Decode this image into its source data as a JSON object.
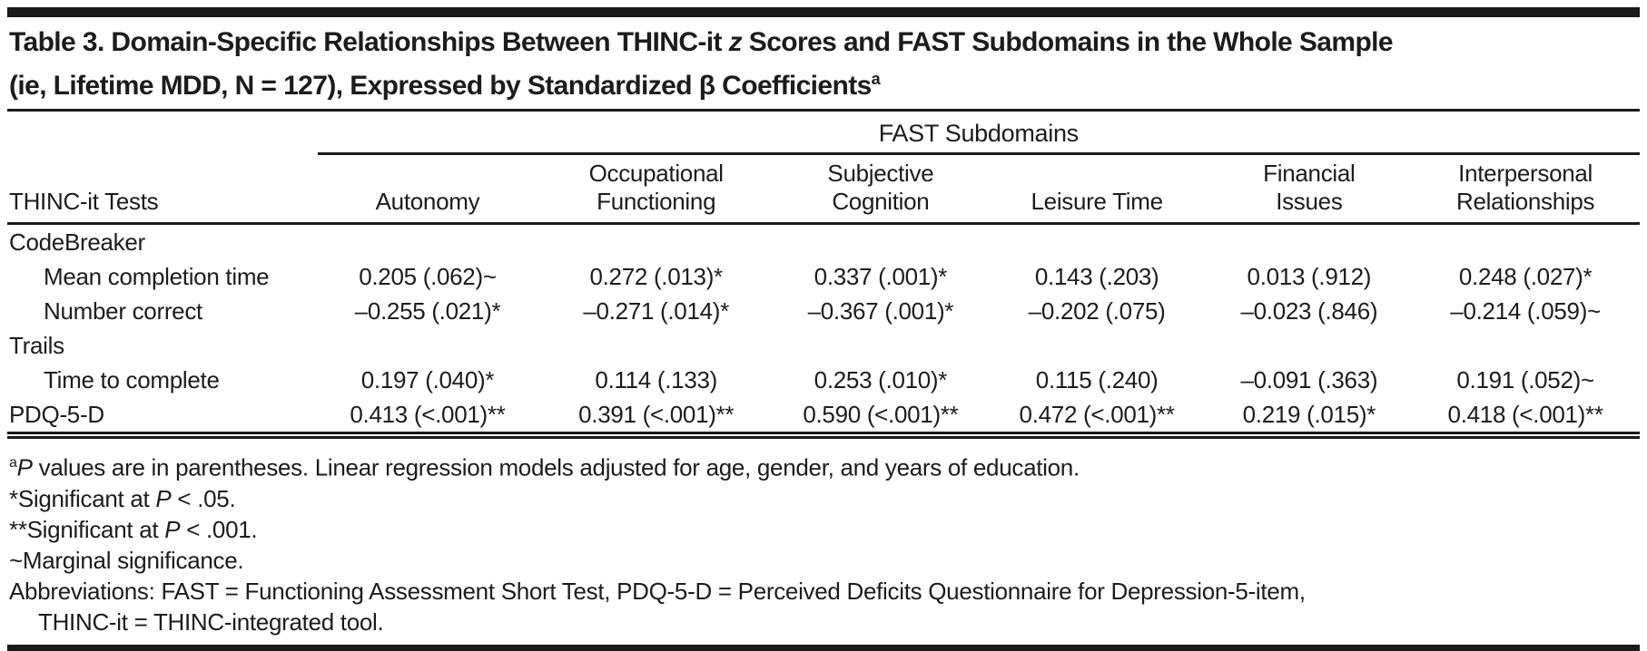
{
  "title": {
    "line1": {
      "pre": "Table 3. Domain-Specific Relationships Between THINC-it ",
      "italic_z": "z",
      "post": " Scores and FAST Subdomains in the Whole Sample"
    },
    "line2": {
      "text": "(ie, Lifetime MDD, N = 127), Expressed by Standardized β Coefficients",
      "superscript": "a"
    }
  },
  "table": {
    "spanning_header": "FAST Subdomains",
    "stub_header": "THINC-it Tests",
    "column_headers": [
      "Autonomy",
      "Occupational\nFunctioning",
      "Subjective\nCognition",
      "Leisure Time",
      "Financial\nIssues",
      "Interpersonal\nRelationships"
    ],
    "rows": [
      {
        "label": "CodeBreaker",
        "type": "group"
      },
      {
        "label": "Mean completion time",
        "type": "data",
        "values": [
          "0.205 (.062)~",
          "0.272 (.013)*",
          "0.337 (.001)*",
          "0.143 (.203)",
          "0.013 (.912)",
          "0.248 (.027)*"
        ]
      },
      {
        "label": "Number correct",
        "type": "data",
        "values": [
          "–0.255 (.021)*",
          "–0.271 (.014)*",
          "–0.367 (.001)*",
          "–0.202 (.075)",
          "–0.023 (.846)",
          "–0.214 (.059)~"
        ]
      },
      {
        "label": "Trails",
        "type": "group"
      },
      {
        "label": "Time to complete",
        "type": "data",
        "values": [
          "0.197 (.040)*",
          "0.114 (.133)",
          "0.253 (.010)*",
          "0.115 (.240)",
          "–0.091 (.363)",
          "0.191 (.052)~"
        ]
      },
      {
        "label": "PDQ-5-D",
        "type": "data",
        "values": [
          "0.413 (<.001)**",
          "0.391 (<.001)**",
          "0.590 (<.001)**",
          "0.472 (<.001)**",
          "0.219 (.015)*",
          "0.418 (<.001)**"
        ]
      }
    ]
  },
  "footnotes": {
    "a": {
      "sup": "a",
      "italic": "P",
      "text": " values are in parentheses. Linear regression models adjusted for age, gender, and years of education."
    },
    "sig1": {
      "pre": "*Significant at ",
      "italic": "P",
      "post": " < .05."
    },
    "sig2": {
      "pre": "**Significant at ",
      "italic": "P",
      "post": " < .001."
    },
    "marginal": "~Marginal significance.",
    "abbreviations_line1": "Abbreviations: FAST = Functioning Assessment Short Test, PDQ-5-D = Perceived Deficits Questionnaire for Depression-5-item,",
    "abbreviations_line2": "THINC-it = THINC-integrated tool."
  },
  "colors": {
    "background": "#ffffff",
    "text": "#1c1c1c",
    "rule": "#1a1a1a"
  }
}
